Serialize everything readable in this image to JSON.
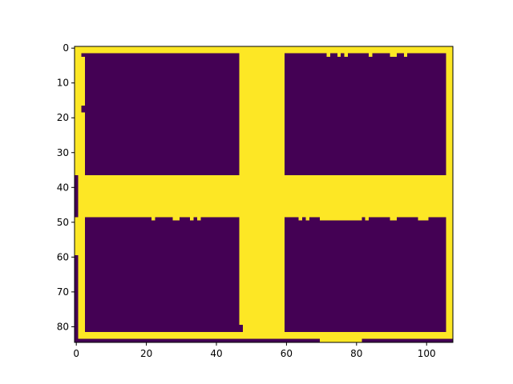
{
  "chart_data": {
    "type": "heatmap",
    "title": "",
    "xlabel": "",
    "ylabel": "",
    "colormap": "viridis",
    "value_colors": {
      "0": "#440154",
      "1": "#fde725"
    },
    "grid": false,
    "legend": "none",
    "xlim": [
      -0.5,
      107.5
    ],
    "ylim": [
      84.5,
      -0.5
    ],
    "x_ticks": [
      0,
      20,
      40,
      60,
      80,
      100
    ],
    "y_ticks": [
      0,
      10,
      20,
      30,
      40,
      50,
      60,
      70,
      80
    ],
    "x_tick_labels": [
      "0",
      "20",
      "40",
      "60",
      "80",
      "100"
    ],
    "y_tick_labels": [
      "0",
      "10",
      "20",
      "30",
      "40",
      "50",
      "60",
      "70",
      "80"
    ],
    "shape": [
      85,
      108
    ],
    "background_value": 1,
    "value_0_rects": [
      {
        "label": "top-left block",
        "x0": 3,
        "x1": 46,
        "y0": 2,
        "y1": 36
      },
      {
        "label": "top-right block",
        "x0": 60,
        "x1": 105,
        "y0": 2,
        "y1": 36
      },
      {
        "label": "bottom-left block",
        "x0": 3,
        "x1": 46,
        "y0": 49,
        "y1": 81
      },
      {
        "label": "bottom-right block",
        "x0": 60,
        "x1": 105,
        "y0": 49,
        "y1": 81
      },
      {
        "label": "top-left notch",
        "x0": 2,
        "x1": 2,
        "y0": 2,
        "y1": 2
      },
      {
        "label": "left edge notch",
        "x0": 2,
        "x1": 2,
        "y0": 17,
        "y1": 18
      },
      {
        "label": "left border segment",
        "x0": 0,
        "x1": 0,
        "y0": 37,
        "y1": 48
      },
      {
        "label": "left border segment lower",
        "x0": 0,
        "x1": 0,
        "y0": 60,
        "y1": 84
      },
      {
        "label": "bottom-left extension",
        "x0": 46,
        "x1": 47,
        "y0": 80,
        "y1": 81
      },
      {
        "label": "bottom border left",
        "x0": 0,
        "x1": 69,
        "y0": 84,
        "y1": 84
      },
      {
        "label": "bottom border right",
        "x0": 82,
        "x1": 107,
        "y0": 84,
        "y1": 84
      }
    ],
    "value_1_rects": [
      {
        "x0": 72,
        "x1": 72,
        "y0": 2,
        "y1": 2
      },
      {
        "x0": 75,
        "x1": 75,
        "y0": 2,
        "y1": 2
      },
      {
        "x0": 77,
        "x1": 77,
        "y0": 2,
        "y1": 2
      },
      {
        "x0": 84,
        "x1": 84,
        "y0": 2,
        "y1": 2
      },
      {
        "x0": 90,
        "x1": 91,
        "y0": 2,
        "y1": 2
      },
      {
        "x0": 94,
        "x1": 94,
        "y0": 2,
        "y1": 2
      },
      {
        "x0": 22,
        "x1": 22,
        "y0": 49,
        "y1": 49
      },
      {
        "x0": 28,
        "x1": 29,
        "y0": 49,
        "y1": 49
      },
      {
        "x0": 33,
        "x1": 33,
        "y0": 49,
        "y1": 49
      },
      {
        "x0": 35,
        "x1": 35,
        "y0": 49,
        "y1": 49
      },
      {
        "x0": 64,
        "x1": 64,
        "y0": 49,
        "y1": 49
      },
      {
        "x0": 66,
        "x1": 66,
        "y0": 49,
        "y1": 49
      },
      {
        "x0": 70,
        "x1": 70,
        "y0": 49,
        "y1": 49
      },
      {
        "x0": 80,
        "x1": 81,
        "y0": 49,
        "y1": 49
      },
      {
        "x0": 83,
        "x1": 83,
        "y0": 49,
        "y1": 49
      },
      {
        "x0": 90,
        "x1": 91,
        "y0": 49,
        "y1": 49
      },
      {
        "x0": 98,
        "x1": 100,
        "y0": 49,
        "y1": 49
      },
      {
        "x0": 71,
        "x1": 71,
        "y0": 49,
        "y1": 49
      },
      {
        "x0": 72,
        "x1": 79,
        "y0": 49,
        "y1": 49
      }
    ]
  }
}
